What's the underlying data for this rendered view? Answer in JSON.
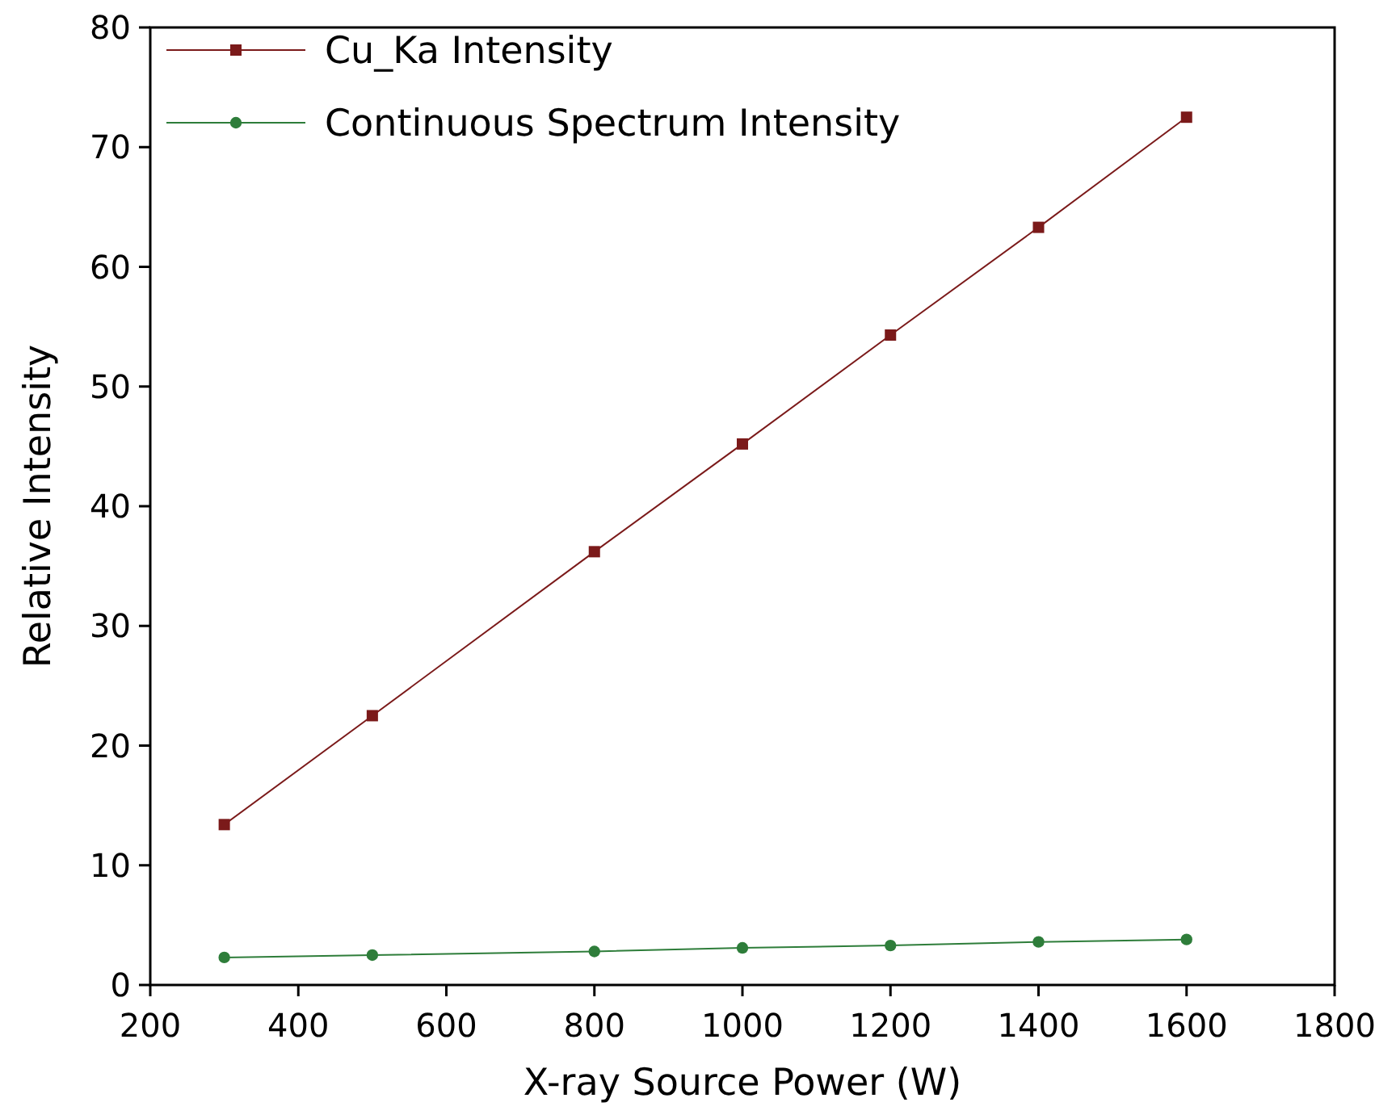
{
  "chart_data": {
    "type": "line",
    "xlabel": "X-ray Source Power (W)",
    "ylabel": "Relative Intensity",
    "x": [
      300,
      500,
      800,
      1000,
      1200,
      1400,
      1600
    ],
    "series": [
      {
        "name": "Cu_Ka Intensity",
        "color": "#7b1a1a",
        "marker": "square",
        "values": [
          13.4,
          22.5,
          36.2,
          45.2,
          54.3,
          63.3,
          72.5
        ]
      },
      {
        "name": "Continuous Spectrum Intensity",
        "color": "#2e7d3a",
        "marker": "circle",
        "values": [
          2.3,
          2.5,
          2.8,
          3.1,
          3.3,
          3.6,
          3.8
        ]
      }
    ],
    "xlim": [
      200,
      1800
    ],
    "xticks": [
      200,
      400,
      600,
      800,
      1000,
      1200,
      1400,
      1600,
      1800
    ],
    "ylim": [
      0,
      80
    ],
    "yticks": [
      0,
      10,
      20,
      30,
      40,
      50,
      60,
      70,
      80
    ],
    "grid": false,
    "legend": "top left"
  }
}
